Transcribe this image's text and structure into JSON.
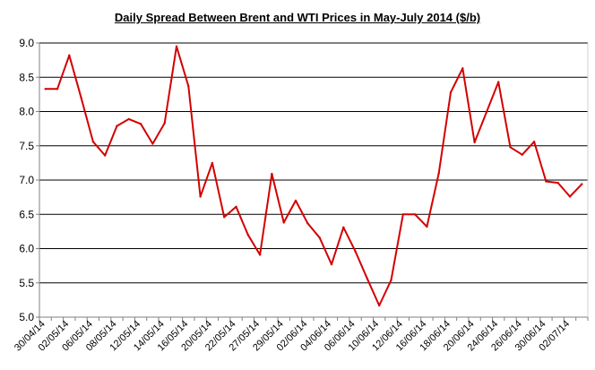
{
  "chart_data": {
    "type": "line",
    "title": "Daily Spread Between Brent and WTI Prices in May-July 2014 ($/b)",
    "xlabel": "",
    "ylabel": "",
    "ylim": [
      5.0,
      9.0
    ],
    "yticks": [
      "5.0",
      "5.5",
      "6.0",
      "6.5",
      "7.0",
      "7.5",
      "8.0",
      "8.5",
      "9.0"
    ],
    "grid": "horizontal",
    "legend": "none",
    "line_color": "#d40000",
    "x_tick_labels": [
      "30/04/14",
      "02/05/14",
      "06/05/14",
      "08/05/14",
      "12/05/14",
      "14/05/14",
      "16/05/14",
      "20/05/14",
      "22/05/14",
      "27/05/14",
      "29/05/14",
      "02/06/14",
      "04/06/14",
      "06/06/14",
      "10/06/14",
      "12/06/14",
      "16/06/14",
      "18/06/14",
      "20/06/14",
      "24/06/14",
      "26/06/14",
      "30/06/14",
      "02/07/14"
    ],
    "series": [
      {
        "values": [
          8.33,
          8.33,
          8.82,
          8.2,
          7.56,
          7.36,
          7.79,
          7.89,
          7.82,
          7.53,
          7.83,
          8.95,
          8.37,
          6.76,
          7.25,
          6.46,
          6.61,
          6.2,
          5.91,
          7.09,
          6.38,
          6.7,
          6.37,
          6.16,
          5.77,
          6.31,
          5.96,
          5.56,
          5.17,
          5.54,
          6.5,
          6.5,
          6.32,
          7.1,
          8.28,
          8.63,
          7.55,
          7.99,
          8.43,
          7.48,
          7.37,
          7.56,
          6.98,
          6.96,
          6.76,
          6.94
        ]
      }
    ]
  }
}
